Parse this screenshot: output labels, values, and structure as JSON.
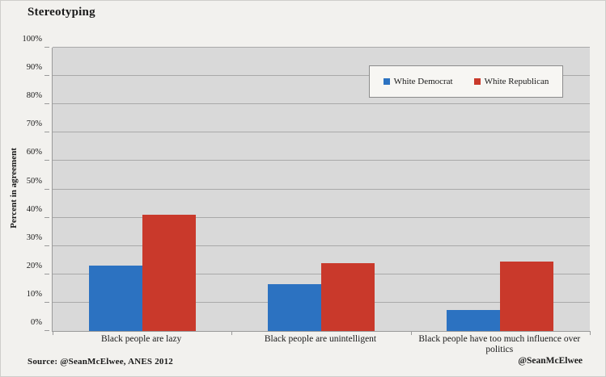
{
  "page": {
    "title": "Stereotyping",
    "source": "Source: @SeanMcElwee, ANES 2012",
    "watermark": "@SeanMcElwee"
  },
  "chart_data": {
    "type": "bar",
    "title": "Stereotyping",
    "xlabel": "",
    "ylabel": "Percent in agreement",
    "ylim": [
      0,
      100
    ],
    "ytick_step": 10,
    "ytick_suffix": "%",
    "grid": true,
    "legend_position": "top-right-inside",
    "categories": [
      "Black people are lazy",
      "Black people are unintelligent",
      "Black people have too much influence over politics"
    ],
    "series": [
      {
        "name": "White Democrat",
        "color": "#2c72c1",
        "values": [
          23,
          16.5,
          7.5
        ]
      },
      {
        "name": "White Republican",
        "color": "#c9392b",
        "values": [
          41,
          24,
          24.5
        ]
      }
    ]
  },
  "colors": {
    "page_background": "#f2f1ee",
    "plot_background": "#d9d9d9",
    "gridline": "#a9a9a9",
    "axis": "#9a9a9a",
    "text": "#1a1a1a",
    "legend_background": "#f7f6f3",
    "democrat_blue": "#2c72c1",
    "republican_red": "#c9392b"
  }
}
